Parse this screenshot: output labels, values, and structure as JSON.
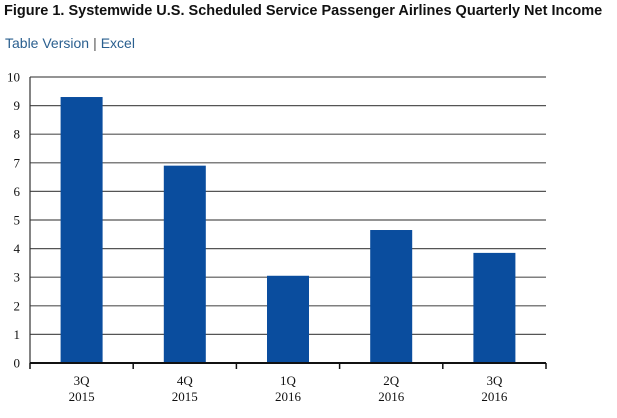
{
  "title": "Figure 1. Systemwide U.S. Scheduled Service Passenger Airlines Quarterly Net Income",
  "links": {
    "table_version": "Table Version",
    "separator": "|",
    "excel": "Excel"
  },
  "colors": {
    "bar": "#0a4d9e",
    "grid": "#555555"
  },
  "chart_data": {
    "type": "bar",
    "categories": [
      [
        "3Q",
        "2015"
      ],
      [
        "4Q",
        "2015"
      ],
      [
        "1Q",
        "2016"
      ],
      [
        "2Q",
        "2016"
      ],
      [
        "3Q",
        "2016"
      ]
    ],
    "values": [
      9.3,
      6.9,
      3.05,
      4.65,
      3.85
    ],
    "ylim": [
      0,
      10
    ],
    "yticks": [
      0,
      1,
      2,
      3,
      4,
      5,
      6,
      7,
      8,
      9,
      10
    ],
    "grid": true,
    "title": "",
    "xlabel": "",
    "ylabel": ""
  }
}
